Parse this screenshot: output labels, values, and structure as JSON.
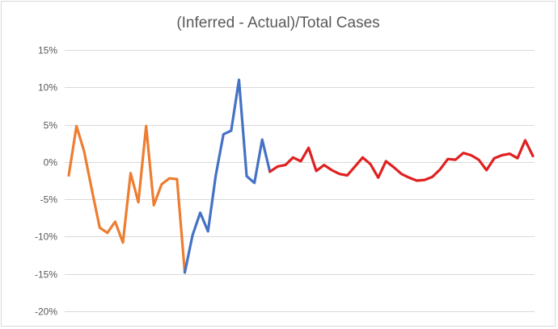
{
  "chart_data": {
    "type": "line",
    "title": "(Inferred - Actual)/Total Cases",
    "xlabel": "",
    "ylabel": "",
    "ylim": [
      -0.2,
      0.15
    ],
    "yticks": [
      0.15,
      0.1,
      0.05,
      0.0,
      -0.05,
      -0.1,
      -0.15,
      -0.2
    ],
    "ytick_labels": [
      "15%",
      "10%",
      "5%",
      "0%",
      "-5%",
      "-10%",
      "-15%",
      "-20%"
    ],
    "grid": true,
    "legend": "none",
    "x_count": 61,
    "series": [
      {
        "color": "#ED7D31",
        "x": [
          0,
          1,
          2,
          3,
          4,
          5,
          6,
          7,
          8,
          9,
          10,
          11,
          12,
          13,
          14,
          15
        ],
        "values": [
          -0.018,
          0.048,
          0.014,
          -0.038,
          -0.088,
          -0.095,
          -0.08,
          -0.108,
          -0.015,
          -0.054,
          0.048,
          -0.058,
          -0.03,
          -0.022,
          -0.023,
          -0.148
        ]
      },
      {
        "color": "#4472C4",
        "x": [
          15,
          16,
          17,
          18,
          19,
          20,
          21,
          22,
          23,
          24,
          25,
          26
        ],
        "values": [
          -0.148,
          -0.098,
          -0.068,
          -0.093,
          -0.018,
          0.037,
          0.042,
          0.11,
          -0.019,
          -0.028,
          0.03,
          -0.013
        ]
      },
      {
        "color": "#E02020",
        "x": [
          26,
          27,
          28,
          29,
          30,
          31,
          32,
          33,
          34,
          35,
          36,
          37,
          38,
          39,
          40,
          41,
          42,
          43,
          44,
          45,
          46,
          47,
          48,
          49,
          50,
          51,
          52,
          53,
          54,
          55,
          56,
          57,
          58,
          59,
          60
        ],
        "values": [
          -0.013,
          -0.006,
          -0.004,
          0.006,
          0.001,
          0.019,
          -0.012,
          -0.004,
          -0.011,
          -0.016,
          -0.018,
          -0.006,
          0.006,
          -0.003,
          -0.021,
          0.001,
          -0.007,
          -0.016,
          -0.021,
          -0.025,
          -0.024,
          -0.02,
          -0.01,
          0.004,
          0.003,
          0.012,
          0.009,
          0.003,
          -0.011,
          0.005,
          0.009,
          0.011,
          0.005,
          0.029,
          0.008
        ]
      }
    ]
  }
}
